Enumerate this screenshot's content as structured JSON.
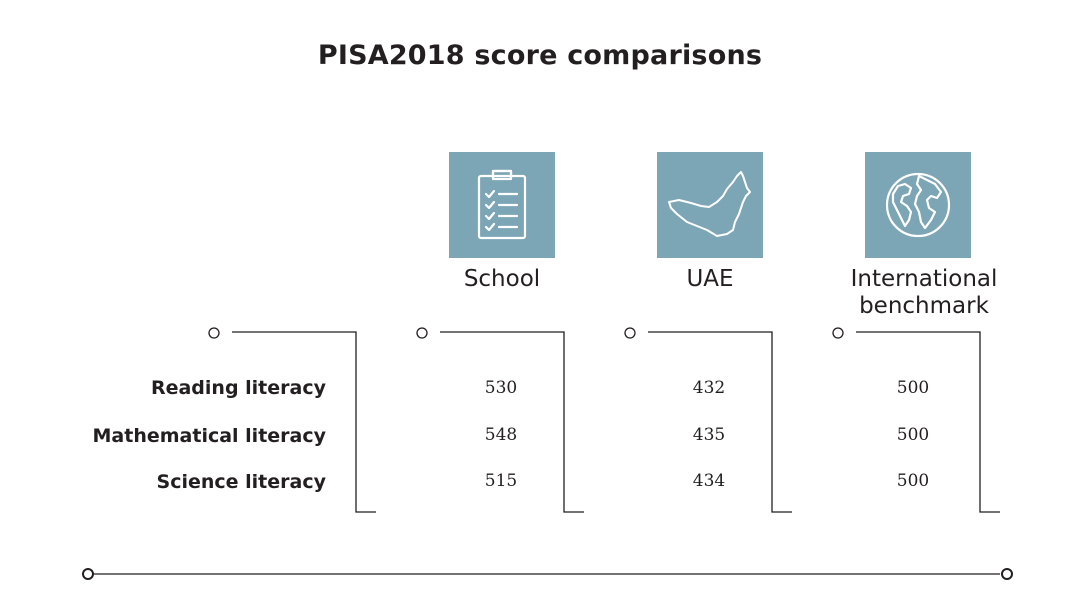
{
  "title": "PISA2018 score comparisons",
  "columns": [
    {
      "label_line1": "School",
      "label_line2": "",
      "icon": "clipboard-checklist-icon"
    },
    {
      "label_line1": "UAE",
      "label_line2": "",
      "icon": "uae-map-icon"
    },
    {
      "label_line1": "International",
      "label_line2": "benchmark",
      "icon": "globe-icon"
    }
  ],
  "rows": [
    {
      "label": "Reading literacy",
      "values": [
        "530",
        "432",
        "500"
      ]
    },
    {
      "label": "Mathematical literacy",
      "values": [
        "548",
        "435",
        "500"
      ]
    },
    {
      "label": "Science literacy",
      "values": [
        "515",
        "434",
        "500"
      ]
    }
  ],
  "colors": {
    "icon_background": "#7ca5b6",
    "text": "#231f20",
    "line": "#231f20"
  }
}
